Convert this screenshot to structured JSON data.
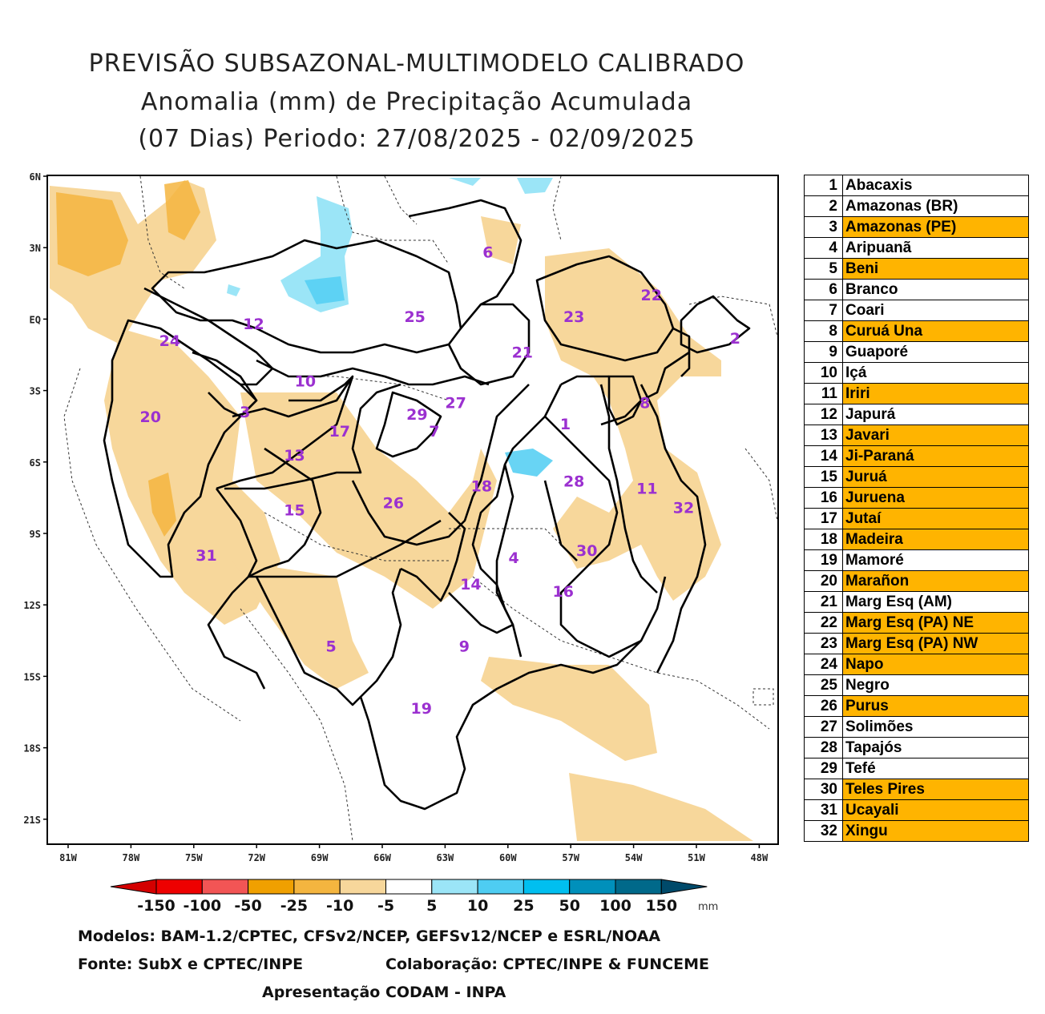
{
  "title": {
    "line1": "PREVISÃO SUBSAZONAL-MULTIMODELO CALIBRADO",
    "line2": "Anomalia (mm) de Precipitação Acumulada",
    "line3": "(07 Dias) Periodo: 27/08/2025 - 02/09/2025"
  },
  "map": {
    "lat_labels": [
      "6N",
      "3N",
      "EQ",
      "3S",
      "6S",
      "9S",
      "12S",
      "15S",
      "18S",
      "21S"
    ],
    "lon_labels": [
      "81W",
      "78W",
      "75W",
      "72W",
      "69W",
      "66W",
      "63W",
      "60W",
      "57W",
      "54W",
      "51W",
      "48W"
    ],
    "region_labels": [
      {
        "id": "1",
        "lon": -57.9,
        "lat": -4.4
      },
      {
        "id": "2",
        "lon": -50.0,
        "lat": -0.8
      },
      {
        "id": "3",
        "lon": -72.8,
        "lat": -3.9
      },
      {
        "id": "4",
        "lon": -60.3,
        "lat": -10.0
      },
      {
        "id": "5",
        "lon": -68.8,
        "lat": -13.7
      },
      {
        "id": "6",
        "lon": -61.5,
        "lat": 2.8
      },
      {
        "id": "7",
        "lon": -64.0,
        "lat": -4.7
      },
      {
        "id": "8",
        "lon": -54.2,
        "lat": -3.5
      },
      {
        "id": "9",
        "lon": -62.6,
        "lat": -13.7
      },
      {
        "id": "10",
        "lon": -70.0,
        "lat": -2.6
      },
      {
        "id": "11",
        "lon": -54.1,
        "lat": -7.1
      },
      {
        "id": "12",
        "lon": -72.4,
        "lat": -0.2
      },
      {
        "id": "13",
        "lon": -70.5,
        "lat": -5.7
      },
      {
        "id": "14",
        "lon": -62.3,
        "lat": -11.1
      },
      {
        "id": "15",
        "lon": -70.5,
        "lat": -8.0
      },
      {
        "id": "16",
        "lon": -58.0,
        "lat": -11.4
      },
      {
        "id": "17",
        "lon": -68.4,
        "lat": -4.7
      },
      {
        "id": "18",
        "lon": -61.8,
        "lat": -7.0
      },
      {
        "id": "19",
        "lon": -64.6,
        "lat": -16.3
      },
      {
        "id": "20",
        "lon": -77.2,
        "lat": -4.1
      },
      {
        "id": "21",
        "lon": -59.9,
        "lat": -1.4
      },
      {
        "id": "22",
        "lon": -53.9,
        "lat": 1.0
      },
      {
        "id": "23",
        "lon": -57.5,
        "lat": 0.1
      },
      {
        "id": "24",
        "lon": -76.3,
        "lat": -0.9
      },
      {
        "id": "25",
        "lon": -64.9,
        "lat": 0.1
      },
      {
        "id": "26",
        "lon": -65.9,
        "lat": -7.7
      },
      {
        "id": "27",
        "lon": -63.0,
        "lat": -3.5
      },
      {
        "id": "28",
        "lon": -57.5,
        "lat": -6.8
      },
      {
        "id": "29",
        "lon": -64.8,
        "lat": -4.0
      },
      {
        "id": "30",
        "lon": -56.9,
        "lat": -9.7
      },
      {
        "id": "31",
        "lon": -74.6,
        "lat": -9.9
      },
      {
        "id": "32",
        "lon": -52.4,
        "lat": -7.9
      }
    ]
  },
  "colorbar": {
    "labels": [
      "-150",
      "-100",
      "-50",
      "-25",
      "-10",
      "-5",
      "5",
      "10",
      "25",
      "50",
      "100",
      "150"
    ],
    "unit": "mm",
    "colors": [
      "#d40000",
      "#ee0000",
      "#f25555",
      "#f0a000",
      "#f4b53f",
      "#f7d79b",
      "#ffffff",
      "#9be5f7",
      "#4ecdf2",
      "#00bff0",
      "#0090bb",
      "#00698a",
      "#004a6a"
    ]
  },
  "basins": [
    {
      "n": "1",
      "name": "Abacaxis",
      "hl": false
    },
    {
      "n": "2",
      "name": "Amazonas (BR)",
      "hl": false
    },
    {
      "n": "3",
      "name": "Amazonas (PE)",
      "hl": true
    },
    {
      "n": "4",
      "name": "Aripuanã",
      "hl": false
    },
    {
      "n": "5",
      "name": "Beni",
      "hl": true
    },
    {
      "n": "6",
      "name": "Branco",
      "hl": false
    },
    {
      "n": "7",
      "name": "Coari",
      "hl": false
    },
    {
      "n": "8",
      "name": "Curuá Una",
      "hl": true
    },
    {
      "n": "9",
      "name": "Guaporé",
      "hl": false
    },
    {
      "n": "10",
      "name": "Içá",
      "hl": false
    },
    {
      "n": "11",
      "name": "Iriri",
      "hl": true
    },
    {
      "n": "12",
      "name": "Japurá",
      "hl": false
    },
    {
      "n": "13",
      "name": "Javari",
      "hl": true
    },
    {
      "n": "14",
      "name": "Ji-Paraná",
      "hl": true
    },
    {
      "n": "15",
      "name": "Juruá",
      "hl": true
    },
    {
      "n": "16",
      "name": "Juruena",
      "hl": true
    },
    {
      "n": "17",
      "name": "Jutaí",
      "hl": true
    },
    {
      "n": "18",
      "name": "Madeira",
      "hl": true
    },
    {
      "n": "19",
      "name": "Mamoré",
      "hl": false
    },
    {
      "n": "20",
      "name": "Marañon",
      "hl": true
    },
    {
      "n": "21",
      "name": "Marg Esq (AM)",
      "hl": false
    },
    {
      "n": "22",
      "name": "Marg Esq (PA) NE",
      "hl": true
    },
    {
      "n": "23",
      "name": "Marg Esq (PA) NW",
      "hl": true
    },
    {
      "n": "24",
      "name": "Napo",
      "hl": true
    },
    {
      "n": "25",
      "name": "Negro",
      "hl": false
    },
    {
      "n": "26",
      "name": "Purus",
      "hl": true
    },
    {
      "n": "27",
      "name": "Solimões",
      "hl": false
    },
    {
      "n": "28",
      "name": "Tapajós",
      "hl": false
    },
    {
      "n": "29",
      "name": "Tefé",
      "hl": false
    },
    {
      "n": "30",
      "name": "Teles Pires",
      "hl": true
    },
    {
      "n": "31",
      "name": "Ucayali",
      "hl": true
    },
    {
      "n": "32",
      "name": "Xingu",
      "hl": true
    }
  ],
  "footer": {
    "models": "Modelos: BAM-1.2/CPTEC, CFSv2/NCEP, GEFSv12/NCEP e ESRL/NOAA",
    "source": "Fonte: SubX e CPTEC/INPE",
    "collab": "Colaboração: CPTEC/INPE & FUNCEME",
    "presented": "Apresentação CODAM - INPA"
  }
}
